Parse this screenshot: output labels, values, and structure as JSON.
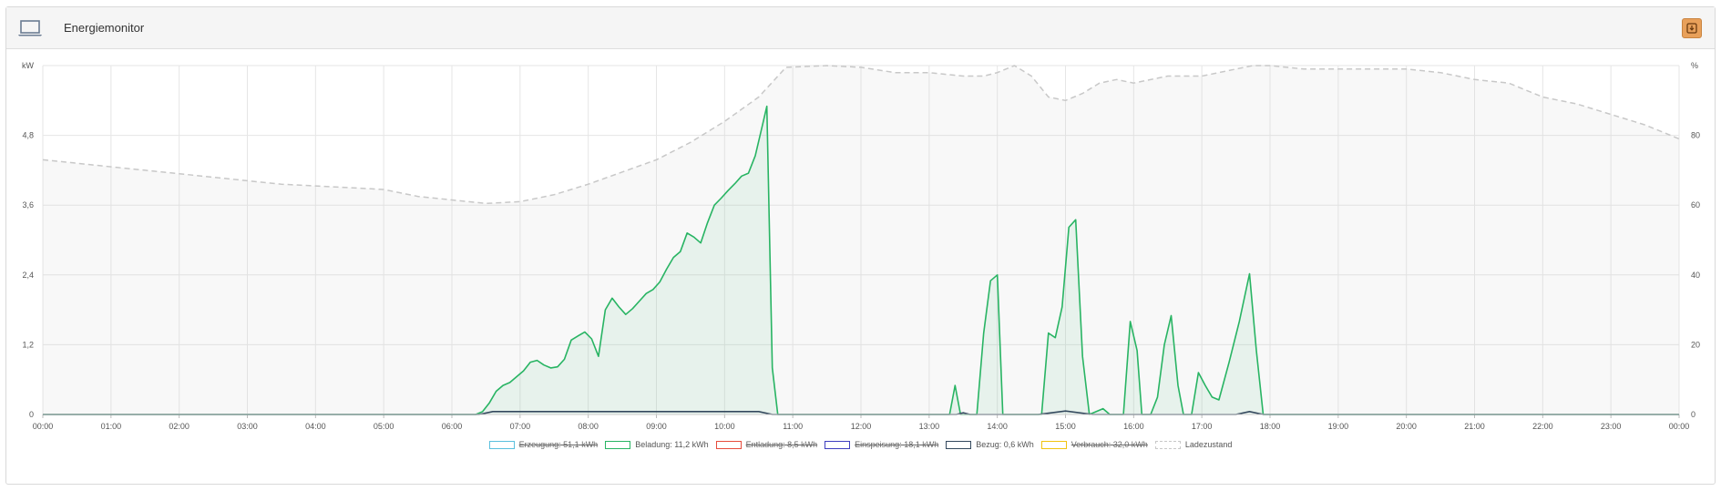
{
  "panel": {
    "title": "Energiemonitor",
    "icon": "laptop-icon",
    "export_icon": "download-icon"
  },
  "chart_data": {
    "type": "line",
    "y_left": {
      "unit_label": "kW",
      "range": [
        0,
        6.0
      ],
      "ticks": [
        "0",
        "1,2",
        "2,4",
        "3,6",
        "4,8"
      ],
      "tick_values": [
        0,
        1.2,
        2.4,
        3.6,
        4.8
      ]
    },
    "y_right": {
      "unit_label": "%",
      "range": [
        0,
        100
      ],
      "ticks": [
        "0",
        "20",
        "40",
        "60",
        "80",
        "%"
      ],
      "tick_values": [
        0,
        20,
        40,
        60,
        80,
        100
      ]
    },
    "x_ticks": [
      "00:00",
      "01:00",
      "02:00",
      "03:00",
      "04:00",
      "05:00",
      "06:00",
      "07:00",
      "08:00",
      "09:00",
      "10:00",
      "11:00",
      "12:00",
      "13:00",
      "14:00",
      "15:00",
      "16:00",
      "17:00",
      "18:00",
      "19:00",
      "20:00",
      "21:00",
      "22:00",
      "23:00",
      "00:00"
    ],
    "grid": true,
    "legend_position": "bottom",
    "series": [
      {
        "name": "Erzeugung: 51,1 kWh",
        "color": "#5bc0de",
        "hidden": true
      },
      {
        "name": "Beladung: 11,2 kWh",
        "color": "#28b463",
        "hidden": false,
        "fill": true,
        "points": [
          [
            0,
            0
          ],
          [
            6.35,
            0
          ],
          [
            6.45,
            0.05
          ],
          [
            6.55,
            0.2
          ],
          [
            6.65,
            0.4
          ],
          [
            6.75,
            0.5
          ],
          [
            6.85,
            0.55
          ],
          [
            6.95,
            0.65
          ],
          [
            7.05,
            0.75
          ],
          [
            7.15,
            0.9
          ],
          [
            7.25,
            0.93
          ],
          [
            7.35,
            0.85
          ],
          [
            7.45,
            0.8
          ],
          [
            7.55,
            0.82
          ],
          [
            7.65,
            0.95
          ],
          [
            7.75,
            1.28
          ],
          [
            7.85,
            1.35
          ],
          [
            7.95,
            1.42
          ],
          [
            8.05,
            1.3
          ],
          [
            8.15,
            1.0
          ],
          [
            8.25,
            1.8
          ],
          [
            8.35,
            2.0
          ],
          [
            8.45,
            1.85
          ],
          [
            8.55,
            1.72
          ],
          [
            8.65,
            1.82
          ],
          [
            8.75,
            1.95
          ],
          [
            8.85,
            2.08
          ],
          [
            8.95,
            2.15
          ],
          [
            9.05,
            2.28
          ],
          [
            9.15,
            2.5
          ],
          [
            9.25,
            2.7
          ],
          [
            9.35,
            2.8
          ],
          [
            9.45,
            3.12
          ],
          [
            9.55,
            3.05
          ],
          [
            9.65,
            2.95
          ],
          [
            9.75,
            3.3
          ],
          [
            9.85,
            3.6
          ],
          [
            9.95,
            3.72
          ],
          [
            10.05,
            3.85
          ],
          [
            10.15,
            3.97
          ],
          [
            10.25,
            4.1
          ],
          [
            10.35,
            4.15
          ],
          [
            10.45,
            4.45
          ],
          [
            10.55,
            4.95
          ],
          [
            10.62,
            5.3
          ],
          [
            10.7,
            0.8
          ],
          [
            10.78,
            0
          ],
          [
            13.3,
            0
          ],
          [
            13.38,
            0.5
          ],
          [
            13.46,
            0
          ],
          [
            13.7,
            0
          ],
          [
            13.8,
            1.4
          ],
          [
            13.9,
            2.3
          ],
          [
            14.0,
            2.4
          ],
          [
            14.08,
            0
          ],
          [
            14.65,
            0
          ],
          [
            14.75,
            1.4
          ],
          [
            14.85,
            1.32
          ],
          [
            14.95,
            1.85
          ],
          [
            15.05,
            3.22
          ],
          [
            15.15,
            3.35
          ],
          [
            15.25,
            1.0
          ],
          [
            15.35,
            0
          ],
          [
            15.55,
            0.1
          ],
          [
            15.65,
            0
          ],
          [
            15.85,
            0
          ],
          [
            15.95,
            1.6
          ],
          [
            16.05,
            1.1
          ],
          [
            16.12,
            0
          ],
          [
            16.25,
            0
          ],
          [
            16.35,
            0.3
          ],
          [
            16.45,
            1.2
          ],
          [
            16.55,
            1.7
          ],
          [
            16.65,
            0.5
          ],
          [
            16.73,
            0
          ],
          [
            16.85,
            0
          ],
          [
            16.95,
            0.72
          ],
          [
            17.05,
            0.5
          ],
          [
            17.15,
            0.3
          ],
          [
            17.25,
            0.25
          ],
          [
            17.4,
            0.9
          ],
          [
            17.55,
            1.6
          ],
          [
            17.7,
            2.42
          ],
          [
            17.8,
            1.1
          ],
          [
            17.9,
            0
          ],
          [
            24,
            0
          ]
        ]
      },
      {
        "name": "Entladung: 8,5 kWh",
        "color": "#e74c3c",
        "hidden": true
      },
      {
        "name": "Einspeisung: 18,1 kWh",
        "color": "#3f3fbf",
        "hidden": true
      },
      {
        "name": "Bezug: 0,6 kWh",
        "color": "#34495e",
        "hidden": false,
        "points": [
          [
            0,
            0
          ],
          [
            6.4,
            0
          ],
          [
            6.6,
            0.05
          ],
          [
            10.5,
            0.05
          ],
          [
            10.7,
            0
          ],
          [
            13.4,
            0
          ],
          [
            13.5,
            0.03
          ],
          [
            13.6,
            0
          ],
          [
            14.6,
            0
          ],
          [
            15.0,
            0.06
          ],
          [
            15.4,
            0
          ],
          [
            17.5,
            0
          ],
          [
            17.7,
            0.05
          ],
          [
            17.9,
            0
          ],
          [
            24,
            0
          ]
        ]
      },
      {
        "name": "Verbrauch: 32,0 kWh",
        "color": "#f1c40f",
        "hidden": true
      },
      {
        "name": "Ladezustand",
        "color": "#c8c8c8",
        "hidden": false,
        "dashed": true,
        "axis": "right",
        "fill": true,
        "points": [
          [
            0,
            73
          ],
          [
            0.5,
            72
          ],
          [
            1,
            71
          ],
          [
            1.5,
            70
          ],
          [
            2,
            69
          ],
          [
            2.5,
            68
          ],
          [
            3,
            67
          ],
          [
            3.5,
            66
          ],
          [
            4,
            65.5
          ],
          [
            4.5,
            65
          ],
          [
            5,
            64.5
          ],
          [
            5.5,
            62.5
          ],
          [
            6,
            61.5
          ],
          [
            6.5,
            60.5
          ],
          [
            7,
            61
          ],
          [
            7.5,
            63
          ],
          [
            8,
            66
          ],
          [
            8.5,
            69.5
          ],
          [
            9,
            73
          ],
          [
            9.5,
            78
          ],
          [
            10,
            84
          ],
          [
            10.5,
            91
          ],
          [
            10.9,
            99.5
          ],
          [
            11.5,
            100
          ],
          [
            12,
            99.5
          ],
          [
            12.5,
            98
          ],
          [
            13,
            98
          ],
          [
            13.5,
            97
          ],
          [
            13.8,
            97
          ],
          [
            14.0,
            98
          ],
          [
            14.25,
            100
          ],
          [
            14.5,
            97
          ],
          [
            14.75,
            91
          ],
          [
            15,
            90
          ],
          [
            15.25,
            92
          ],
          [
            15.5,
            95
          ],
          [
            15.75,
            96
          ],
          [
            16,
            95
          ],
          [
            16.5,
            97
          ],
          [
            17,
            97
          ],
          [
            17.5,
            99
          ],
          [
            17.75,
            100
          ],
          [
            18,
            100
          ],
          [
            18.5,
            99
          ],
          [
            19,
            99
          ],
          [
            19.5,
            99
          ],
          [
            20,
            99
          ],
          [
            20.5,
            98
          ],
          [
            21,
            96
          ],
          [
            21.5,
            95
          ],
          [
            22,
            91
          ],
          [
            22.5,
            89
          ],
          [
            23,
            86
          ],
          [
            23.5,
            83
          ],
          [
            24,
            79
          ]
        ]
      }
    ]
  }
}
